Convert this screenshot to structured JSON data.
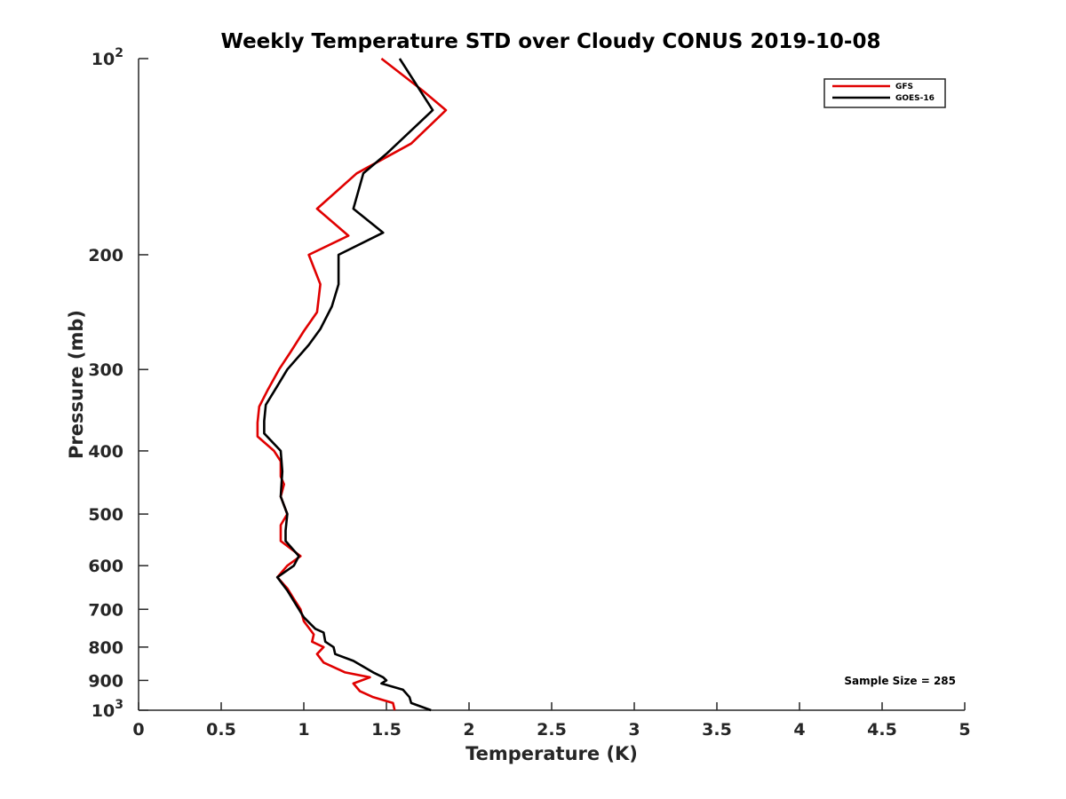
{
  "chart_data": {
    "type": "line",
    "title": "Weekly Temperature STD over Cloudy CONUS 2019-10-08",
    "xlabel": "Temperature (K)",
    "ylabel": "Pressure (mb)",
    "xlim": [
      0,
      5
    ],
    "ylim": [
      100,
      1000
    ],
    "yscale": "log",
    "y_reversed": true,
    "grid": false,
    "legend_position": "top-right",
    "x_ticks": [
      {
        "value": 0,
        "label": "0"
      },
      {
        "value": 0.5,
        "label": "0.5"
      },
      {
        "value": 1,
        "label": "1"
      },
      {
        "value": 1.5,
        "label": "1.5"
      },
      {
        "value": 2,
        "label": "2"
      },
      {
        "value": 2.5,
        "label": "2.5"
      },
      {
        "value": 3,
        "label": "3"
      },
      {
        "value": 3.5,
        "label": "3.5"
      },
      {
        "value": 4,
        "label": "4"
      },
      {
        "value": 4.5,
        "label": "4.5"
      },
      {
        "value": 5,
        "label": "5"
      }
    ],
    "y_ticks": [
      {
        "value": 100,
        "label": "10",
        "sup": "2"
      },
      {
        "value": 200,
        "label": "200"
      },
      {
        "value": 300,
        "label": "300"
      },
      {
        "value": 400,
        "label": "400"
      },
      {
        "value": 500,
        "label": "500"
      },
      {
        "value": 600,
        "label": "600"
      },
      {
        "value": 700,
        "label": "700"
      },
      {
        "value": 800,
        "label": "800"
      },
      {
        "value": 900,
        "label": "900"
      },
      {
        "value": 1000,
        "label": "10",
        "sup": "3"
      }
    ],
    "series": [
      {
        "name": "GFS",
        "color": "#e00000",
        "points": [
          {
            "x": 1.47,
            "y": 100
          },
          {
            "x": 1.72,
            "y": 112
          },
          {
            "x": 1.86,
            "y": 120
          },
          {
            "x": 1.65,
            "y": 135
          },
          {
            "x": 1.32,
            "y": 150
          },
          {
            "x": 1.08,
            "y": 170
          },
          {
            "x": 1.27,
            "y": 187
          },
          {
            "x": 1.03,
            "y": 200
          },
          {
            "x": 1.1,
            "y": 222
          },
          {
            "x": 1.08,
            "y": 245
          },
          {
            "x": 1.0,
            "y": 262
          },
          {
            "x": 0.92,
            "y": 282
          },
          {
            "x": 0.85,
            "y": 300
          },
          {
            "x": 0.78,
            "y": 323
          },
          {
            "x": 0.73,
            "y": 342
          },
          {
            "x": 0.72,
            "y": 362
          },
          {
            "x": 0.72,
            "y": 380
          },
          {
            "x": 0.82,
            "y": 400
          },
          {
            "x": 0.86,
            "y": 415
          },
          {
            "x": 0.86,
            "y": 438
          },
          {
            "x": 0.88,
            "y": 450
          },
          {
            "x": 0.86,
            "y": 470
          },
          {
            "x": 0.9,
            "y": 500
          },
          {
            "x": 0.86,
            "y": 520
          },
          {
            "x": 0.86,
            "y": 550
          },
          {
            "x": 0.98,
            "y": 580
          },
          {
            "x": 0.9,
            "y": 600
          },
          {
            "x": 0.84,
            "y": 625
          },
          {
            "x": 0.9,
            "y": 650
          },
          {
            "x": 0.94,
            "y": 675
          },
          {
            "x": 0.98,
            "y": 700
          },
          {
            "x": 1.0,
            "y": 730
          },
          {
            "x": 1.06,
            "y": 765
          },
          {
            "x": 1.05,
            "y": 785
          },
          {
            "x": 1.12,
            "y": 800
          },
          {
            "x": 1.08,
            "y": 820
          },
          {
            "x": 1.12,
            "y": 845
          },
          {
            "x": 1.25,
            "y": 875
          },
          {
            "x": 1.4,
            "y": 890
          },
          {
            "x": 1.3,
            "y": 910
          },
          {
            "x": 1.34,
            "y": 935
          },
          {
            "x": 1.42,
            "y": 955
          },
          {
            "x": 1.54,
            "y": 975
          },
          {
            "x": 1.55,
            "y": 1000
          }
        ]
      },
      {
        "name": "GOES-16",
        "color": "#000000",
        "points": [
          {
            "x": 1.58,
            "y": 100
          },
          {
            "x": 1.78,
            "y": 120
          },
          {
            "x": 1.5,
            "y": 140
          },
          {
            "x": 1.36,
            "y": 150
          },
          {
            "x": 1.3,
            "y": 170
          },
          {
            "x": 1.48,
            "y": 185
          },
          {
            "x": 1.21,
            "y": 200
          },
          {
            "x": 1.21,
            "y": 222
          },
          {
            "x": 1.17,
            "y": 240
          },
          {
            "x": 1.1,
            "y": 260
          },
          {
            "x": 1.03,
            "y": 275
          },
          {
            "x": 0.9,
            "y": 300
          },
          {
            "x": 0.84,
            "y": 318
          },
          {
            "x": 0.77,
            "y": 340
          },
          {
            "x": 0.76,
            "y": 360
          },
          {
            "x": 0.76,
            "y": 376
          },
          {
            "x": 0.86,
            "y": 400
          },
          {
            "x": 0.87,
            "y": 430
          },
          {
            "x": 0.86,
            "y": 470
          },
          {
            "x": 0.9,
            "y": 500
          },
          {
            "x": 0.89,
            "y": 530
          },
          {
            "x": 0.89,
            "y": 550
          },
          {
            "x": 0.97,
            "y": 580
          },
          {
            "x": 0.94,
            "y": 600
          },
          {
            "x": 0.84,
            "y": 625
          },
          {
            "x": 0.9,
            "y": 655
          },
          {
            "x": 1.0,
            "y": 720
          },
          {
            "x": 1.07,
            "y": 750
          },
          {
            "x": 1.12,
            "y": 760
          },
          {
            "x": 1.13,
            "y": 785
          },
          {
            "x": 1.18,
            "y": 800
          },
          {
            "x": 1.19,
            "y": 820
          },
          {
            "x": 1.3,
            "y": 840
          },
          {
            "x": 1.42,
            "y": 875
          },
          {
            "x": 1.48,
            "y": 890
          },
          {
            "x": 1.5,
            "y": 900
          },
          {
            "x": 1.47,
            "y": 910
          },
          {
            "x": 1.6,
            "y": 930
          },
          {
            "x": 1.64,
            "y": 955
          },
          {
            "x": 1.65,
            "y": 975
          },
          {
            "x": 1.77,
            "y": 1000
          }
        ]
      }
    ],
    "annotations": [
      {
        "text": "Sample Size = 285",
        "position": "bottom-right"
      }
    ]
  }
}
